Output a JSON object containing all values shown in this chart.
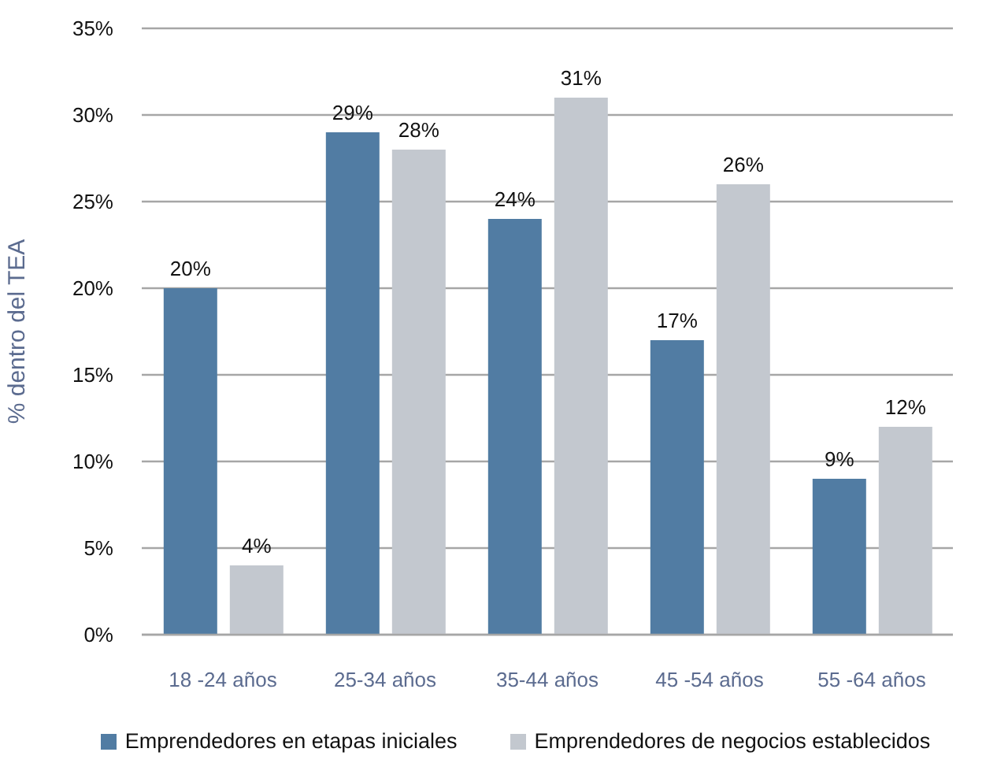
{
  "chart_data": {
    "type": "bar",
    "ylabel": "% dentro del TEA",
    "categories": [
      "18 -24 años",
      "25-34 años",
      "35-44 años",
      "45 -54 años",
      "55 -64 años"
    ],
    "series": [
      {
        "name": "Emprendedores en etapas iniciales",
        "color": "#517ca3",
        "values": [
          20,
          29,
          24,
          17,
          9
        ],
        "value_labels": [
          "20%",
          "29%",
          "24%",
          "17%",
          "9%"
        ]
      },
      {
        "name": "Emprendedores de negocios establecidos",
        "color": "#c3c8cf",
        "values": [
          4,
          28,
          31,
          26,
          12
        ],
        "value_labels": [
          "4%",
          "28%",
          "31%",
          "26%",
          "12%"
        ]
      }
    ],
    "ylim": [
      0,
      35
    ],
    "yticks": [
      {
        "value": 0,
        "label": "0%"
      },
      {
        "value": 5,
        "label": "5%"
      },
      {
        "value": 10,
        "label": "10%"
      },
      {
        "value": 15,
        "label": "15%"
      },
      {
        "value": 20,
        "label": "20%"
      },
      {
        "value": 25,
        "label": "25%"
      },
      {
        "value": 30,
        "label": "30%"
      },
      {
        "value": 35,
        "label": "35%"
      }
    ],
    "grid": "y",
    "legend": "bottom"
  }
}
